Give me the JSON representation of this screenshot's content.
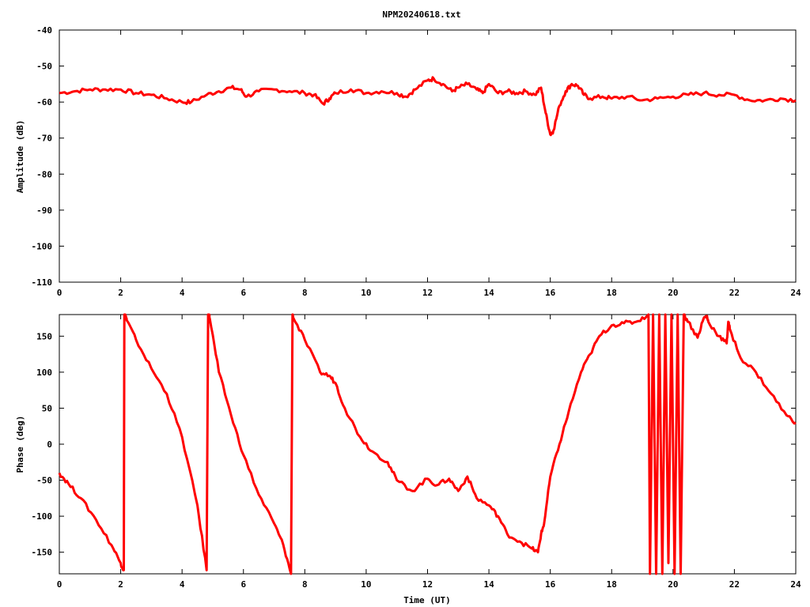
{
  "chart_data": [
    {
      "type": "line",
      "title": "NPM20240618.txt",
      "xlabel": "",
      "ylabel": "Amplitude (dB)",
      "xlim": [
        0,
        24
      ],
      "ylim": [
        -110,
        -40
      ],
      "xticks": [
        "0",
        "2",
        "4",
        "6",
        "8",
        "10",
        "12",
        "14",
        "16",
        "18",
        "20",
        "22",
        "24"
      ],
      "yticks": [
        "-40",
        "-50",
        "-60",
        "-70",
        "-80",
        "-90",
        "-100",
        "-110"
      ],
      "grid": false,
      "line_color": "#ff0000",
      "x": [
        0,
        0.5,
        1,
        1.5,
        2,
        2.5,
        3,
        3.5,
        4,
        4.3,
        4.8,
        5.2,
        5.6,
        5.9,
        6.1,
        6.5,
        7,
        7.5,
        8,
        8.3,
        8.6,
        8.8,
        9,
        9.5,
        10,
        10.5,
        11,
        11.3,
        11.6,
        12,
        12.2,
        12.5,
        12.8,
        13,
        13.3,
        13.6,
        13.8,
        14,
        14.3,
        14.6,
        14.9,
        15.2,
        15.5,
        15.7,
        15.85,
        16,
        16.1,
        16.3,
        16.5,
        16.7,
        16.9,
        17.1,
        17.3,
        17.7,
        18,
        18.5,
        19,
        19.5,
        20,
        20.5,
        21,
        21.5,
        22,
        22.5,
        23,
        23.5,
        24
      ],
      "y": [
        -57.5,
        -57,
        -56.5,
        -56.5,
        -56.5,
        -57.5,
        -58,
        -59,
        -60,
        -60,
        -58,
        -57,
        -56,
        -56.5,
        -58.5,
        -57,
        -56.5,
        -57,
        -57.5,
        -58,
        -60.5,
        -59,
        -57.5,
        -56.5,
        -57.5,
        -57,
        -57.5,
        -58.5,
        -56.5,
        -54,
        -53.5,
        -55,
        -57,
        -56,
        -55,
        -56.5,
        -57.5,
        -55,
        -57.5,
        -57,
        -57.5,
        -57,
        -58,
        -56,
        -63,
        -69,
        -68,
        -61,
        -57,
        -55,
        -55.5,
        -58,
        -59,
        -58.5,
        -59,
        -58.5,
        -59.5,
        -59,
        -58.5,
        -58,
        -57.5,
        -58,
        -58,
        -59.5,
        -59.5,
        -59,
        -59.5
      ]
    },
    {
      "type": "line",
      "title": "",
      "xlabel": "Time (UT)",
      "ylabel": "Phase (deg)",
      "xlim": [
        0,
        24
      ],
      "ylim": [
        -180,
        180
      ],
      "xticks": [
        "0",
        "2",
        "4",
        "6",
        "8",
        "10",
        "12",
        "14",
        "16",
        "18",
        "20",
        "22",
        "24"
      ],
      "yticks": [
        "150",
        "100",
        "50",
        "0",
        "-50",
        "-100",
        "-150"
      ],
      "grid": false,
      "line_color": "#ff0000",
      "x": [
        0,
        0.3,
        0.7,
        1.2,
        1.7,
        2.0,
        2.1,
        2.12,
        2.15,
        2.2,
        2.5,
        3.0,
        3.5,
        4.0,
        4.5,
        4.8,
        4.85,
        4.88,
        4.9,
        5.2,
        5.6,
        6.0,
        6.5,
        7.0,
        7.3,
        7.55,
        7.6,
        7.63,
        8.0,
        8.5,
        8.8,
        9.0,
        9.3,
        9.8,
        10.2,
        10.7,
        11.0,
        11.5,
        12.0,
        12.3,
        12.7,
        13.0,
        13.3,
        13.6,
        14.0,
        14.3,
        14.6,
        15.0,
        15.4,
        15.6,
        15.7,
        15.8,
        16.0,
        16.3,
        16.6,
        17.0,
        17.3,
        17.6,
        18.0,
        18.4,
        18.8,
        19.2,
        19.25,
        19.35,
        19.45,
        19.55,
        19.65,
        19.75,
        19.85,
        19.95,
        20.05,
        20.15,
        20.25,
        20.35,
        20.5,
        20.8,
        21.0,
        21.1,
        21.15,
        21.5,
        21.75,
        21.8,
        21.85,
        22.2,
        22.7,
        23.2,
        23.7,
        24.0
      ],
      "y": [
        -40,
        -55,
        -75,
        -105,
        -140,
        -165,
        -175,
        180,
        180,
        172,
        145,
        105,
        70,
        10,
        -85,
        -175,
        180,
        180,
        175,
        100,
        40,
        -15,
        -70,
        -110,
        -140,
        -180,
        180,
        175,
        145,
        100,
        95,
        85,
        50,
        10,
        -10,
        -25,
        -50,
        -65,
        -48,
        -57,
        -48,
        -65,
        -45,
        -75,
        -85,
        -100,
        -125,
        -135,
        -145,
        -150,
        -125,
        -110,
        -45,
        0,
        45,
        100,
        125,
        150,
        165,
        168,
        170,
        180,
        -180,
        180,
        -180,
        180,
        -180,
        180,
        -165,
        180,
        -180,
        180,
        -180,
        180,
        170,
        148,
        175,
        178,
        170,
        150,
        140,
        170,
        160,
        120,
        100,
        70,
        40,
        30
      ]
    }
  ]
}
